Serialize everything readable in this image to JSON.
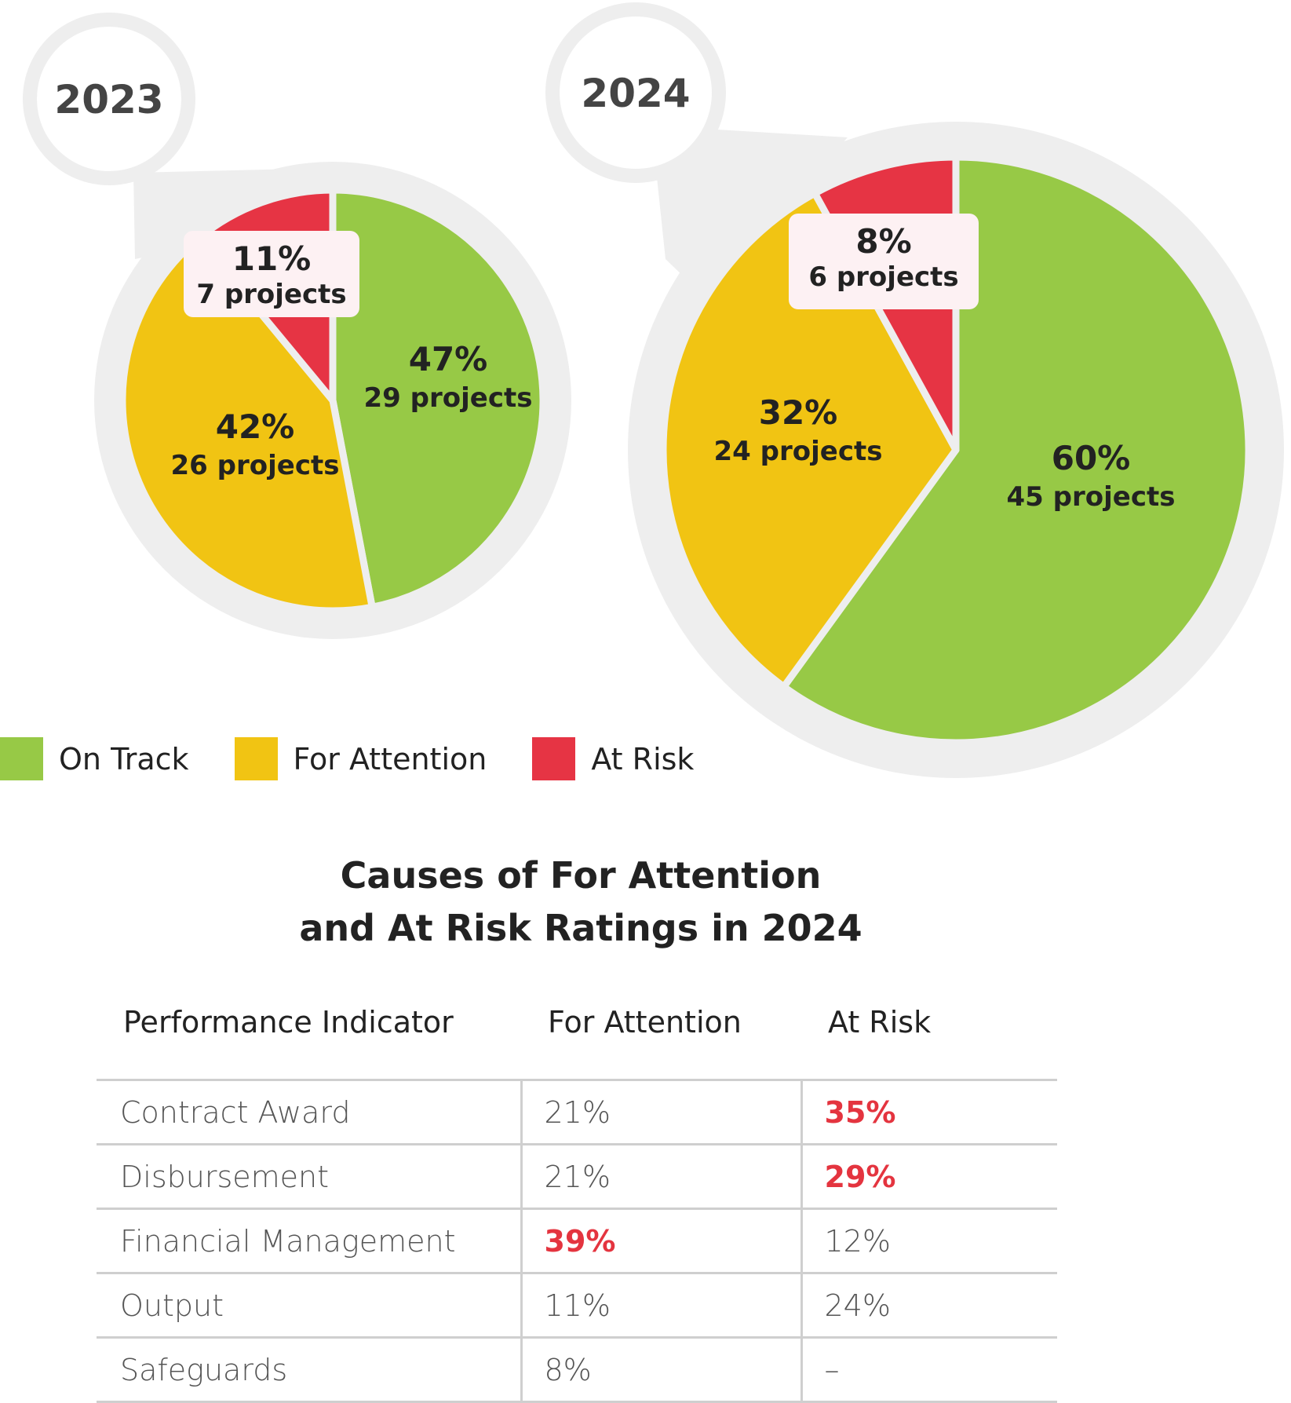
{
  "chart_data": [
    {
      "type": "pie",
      "title": "2023",
      "slices": [
        {
          "label": "On Track",
          "value": 47,
          "text": "47%",
          "projects": "29 projects",
          "color": "#97c946"
        },
        {
          "label": "For Attention",
          "value": 42,
          "text": "42%",
          "projects": "26 projects",
          "color": "#f1c413"
        },
        {
          "label": "At Risk",
          "value": 11,
          "text": "11%",
          "projects": "7 projects",
          "color": "#e63444"
        }
      ]
    },
    {
      "type": "pie",
      "title": "2024",
      "slices": [
        {
          "label": "On Track",
          "value": 60,
          "text": "60%",
          "projects": "45 projects",
          "color": "#97c946"
        },
        {
          "label": "For Attention",
          "value": 32,
          "text": "32%",
          "projects": "24 projects",
          "color": "#f1c413"
        },
        {
          "label": "At Risk",
          "value": 8,
          "text": "8%",
          "projects": "6 projects",
          "color": "#e63444"
        }
      ]
    },
    {
      "type": "table",
      "title_line1": "Causes of For Attention",
      "title_line2": "and At Risk Ratings in 2024",
      "columns": [
        "Performance Indicator",
        "For Attention",
        "At Risk"
      ],
      "rows": [
        {
          "indicator": "Contract Award",
          "for_attention": "21%",
          "at_risk": "35%",
          "highlight": "at_risk"
        },
        {
          "indicator": "Disbursement",
          "for_attention": "21%",
          "at_risk": "29%",
          "highlight": "at_risk"
        },
        {
          "indicator": "Financial Management",
          "for_attention": "39%",
          "at_risk": "12%",
          "highlight": "for_attention"
        },
        {
          "indicator": "Output",
          "for_attention": "11%",
          "at_risk": "24%",
          "highlight": ""
        },
        {
          "indicator": "Safeguards",
          "for_attention": "8%",
          "at_risk": "–",
          "highlight": ""
        }
      ]
    }
  ],
  "legend": [
    {
      "label": "On Track",
      "color": "#97c946"
    },
    {
      "label": "For Attention",
      "color": "#f1c413"
    },
    {
      "label": "At Risk",
      "color": "#e63444"
    }
  ],
  "colors": {
    "halo": "#eeeeee",
    "callout": "#fdf1f3",
    "text": "#222222",
    "highlight": "#e4343f"
  }
}
